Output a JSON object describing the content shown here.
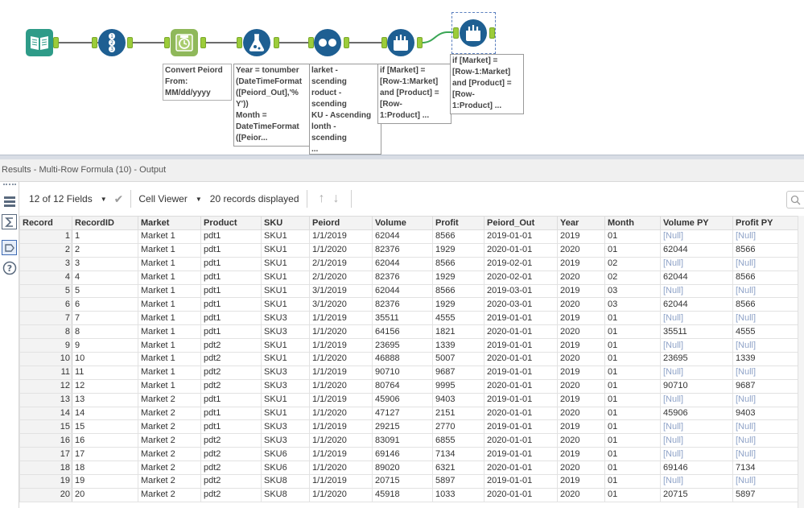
{
  "workflow": {
    "annotations": {
      "datetime": "Convert Peiord\nFrom:\nMM/dd/yyyy",
      "formula": "Year = tonumber\n(DateTimeFormat\n([Peiord_Out],'%\nY'))\nMonth =\nDateTimeFormat\n([Peior...",
      "sort": "larket -\nscending\nroduct -\nscending\nKU - Ascending\nlonth -\nscending\n...",
      "multirow1": "if [Market] =\n[Row-1:Market]\nand [Product] =\n[Row-\n1:Product] ...",
      "multirow2": "if [Market] =\n[Row-1:Market]\nand [Product] =\n[Row-\n1:Product] ..."
    },
    "tool_icons": [
      "book-icon",
      "record-id-icon",
      "datetime-icon",
      "formula-icon",
      "sort-icon",
      "multi-row-formula-icon",
      "multi-row-formula-icon"
    ]
  },
  "results": {
    "title": "Results - Multi-Row Formula (10) - Output",
    "fields_label": "12 of 12 Fields",
    "viewer_label": "Cell Viewer",
    "records_label": "20 records displayed",
    "columns": [
      "Record",
      "RecordID",
      "Market",
      "Product",
      "SKU",
      "Peiord",
      "Volume",
      "Profit",
      "Peiord_Out",
      "Year",
      "Month",
      "Volume PY",
      "Profit PY"
    ],
    "rows": [
      [
        "1",
        "1",
        "Market 1",
        "pdt1",
        "SKU1",
        "1/1/2019",
        "62044",
        "8566",
        "2019-01-01",
        "2019",
        "01",
        "[Null]",
        "[Null]"
      ],
      [
        "2",
        "2",
        "Market 1",
        "pdt1",
        "SKU1",
        "1/1/2020",
        "82376",
        "1929",
        "2020-01-01",
        "2020",
        "01",
        "62044",
        "8566"
      ],
      [
        "3",
        "3",
        "Market 1",
        "pdt1",
        "SKU1",
        "2/1/2019",
        "62044",
        "8566",
        "2019-02-01",
        "2019",
        "02",
        "[Null]",
        "[Null]"
      ],
      [
        "4",
        "4",
        "Market 1",
        "pdt1",
        "SKU1",
        "2/1/2020",
        "82376",
        "1929",
        "2020-02-01",
        "2020",
        "02",
        "62044",
        "8566"
      ],
      [
        "5",
        "5",
        "Market 1",
        "pdt1",
        "SKU1",
        "3/1/2019",
        "62044",
        "8566",
        "2019-03-01",
        "2019",
        "03",
        "[Null]",
        "[Null]"
      ],
      [
        "6",
        "6",
        "Market 1",
        "pdt1",
        "SKU1",
        "3/1/2020",
        "82376",
        "1929",
        "2020-03-01",
        "2020",
        "03",
        "62044",
        "8566"
      ],
      [
        "7",
        "7",
        "Market 1",
        "pdt1",
        "SKU3",
        "1/1/2019",
        "35511",
        "4555",
        "2019-01-01",
        "2019",
        "01",
        "[Null]",
        "[Null]"
      ],
      [
        "8",
        "8",
        "Market 1",
        "pdt1",
        "SKU3",
        "1/1/2020",
        "64156",
        "1821",
        "2020-01-01",
        "2020",
        "01",
        "35511",
        "4555"
      ],
      [
        "9",
        "9",
        "Market 1",
        "pdt2",
        "SKU1",
        "1/1/2019",
        "23695",
        "1339",
        "2019-01-01",
        "2019",
        "01",
        "[Null]",
        "[Null]"
      ],
      [
        "10",
        "10",
        "Market 1",
        "pdt2",
        "SKU1",
        "1/1/2020",
        "46888",
        "5007",
        "2020-01-01",
        "2020",
        "01",
        "23695",
        "1339"
      ],
      [
        "11",
        "11",
        "Market 1",
        "pdt2",
        "SKU3",
        "1/1/2019",
        "90710",
        "9687",
        "2019-01-01",
        "2019",
        "01",
        "[Null]",
        "[Null]"
      ],
      [
        "12",
        "12",
        "Market 1",
        "pdt2",
        "SKU3",
        "1/1/2020",
        "80764",
        "9995",
        "2020-01-01",
        "2020",
        "01",
        "90710",
        "9687"
      ],
      [
        "13",
        "13",
        "Market 2",
        "pdt1",
        "SKU1",
        "1/1/2019",
        "45906",
        "9403",
        "2019-01-01",
        "2019",
        "01",
        "[Null]",
        "[Null]"
      ],
      [
        "14",
        "14",
        "Market 2",
        "pdt1",
        "SKU1",
        "1/1/2020",
        "47127",
        "2151",
        "2020-01-01",
        "2020",
        "01",
        "45906",
        "9403"
      ],
      [
        "15",
        "15",
        "Market 2",
        "pdt1",
        "SKU3",
        "1/1/2019",
        "29215",
        "2770",
        "2019-01-01",
        "2019",
        "01",
        "[Null]",
        "[Null]"
      ],
      [
        "16",
        "16",
        "Market 2",
        "pdt2",
        "SKU3",
        "1/1/2020",
        "83091",
        "6855",
        "2020-01-01",
        "2020",
        "01",
        "[Null]",
        "[Null]"
      ],
      [
        "17",
        "17",
        "Market 2",
        "pdt2",
        "SKU6",
        "1/1/2019",
        "69146",
        "7134",
        "2019-01-01",
        "2019",
        "01",
        "[Null]",
        "[Null]"
      ],
      [
        "18",
        "18",
        "Market 2",
        "pdt2",
        "SKU6",
        "1/1/2020",
        "89020",
        "6321",
        "2020-01-01",
        "2020",
        "01",
        "69146",
        "7134"
      ],
      [
        "19",
        "19",
        "Market 2",
        "pdt2",
        "SKU8",
        "1/1/2019",
        "20715",
        "5897",
        "2019-01-01",
        "2019",
        "01",
        "[Null]",
        "[Null]"
      ],
      [
        "20",
        "20",
        "Market 2",
        "pdt2",
        "SKU8",
        "1/1/2020",
        "45918",
        "1033",
        "2020-01-01",
        "2020",
        "01",
        "20715",
        "5897"
      ]
    ]
  }
}
